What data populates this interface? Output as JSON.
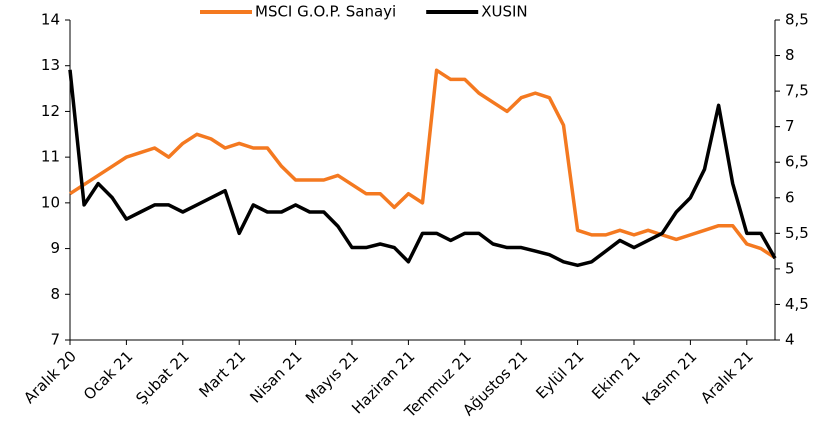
{
  "chart_data": {
    "type": "line",
    "categories": [
      "Aralık 20",
      null,
      null,
      null,
      "Ocak 21",
      null,
      null,
      null,
      "Şubat 21",
      null,
      null,
      null,
      "Mart 21",
      null,
      null,
      null,
      "Nisan 21",
      null,
      null,
      null,
      "Mayıs 21",
      null,
      null,
      null,
      "Haziran 21",
      null,
      null,
      null,
      "Temmuz 21",
      null,
      null,
      null,
      "Ağustos 21",
      null,
      null,
      null,
      "Eylül 21",
      null,
      null,
      null,
      "Ekim 21",
      null,
      null,
      null,
      "Kasım 21",
      null,
      null,
      null,
      "Aralık 21",
      null,
      null
    ],
    "series": [
      {
        "name": "MSCI G.O.P. Sanayi",
        "color": "#f47920",
        "values": [
          10.2,
          10.4,
          10.6,
          10.8,
          11.0,
          11.1,
          11.2,
          11.0,
          11.3,
          11.5,
          11.4,
          11.2,
          11.3,
          11.2,
          11.2,
          10.8,
          10.5,
          10.5,
          10.5,
          10.6,
          10.4,
          10.2,
          10.2,
          9.9,
          10.2,
          10.0,
          12.9,
          12.7,
          12.7,
          12.4,
          12.2,
          12.0,
          12.3,
          12.4,
          12.3,
          11.7,
          9.4,
          9.3,
          9.3,
          9.4,
          9.3,
          9.4,
          9.3,
          9.2,
          9.3,
          9.4,
          9.5,
          9.5,
          9.1,
          9.0,
          8.8
        ]
      },
      {
        "name": "XUSIN",
        "color": "#000000",
        "axis": "y2",
        "values": [
          7.8,
          5.9,
          6.2,
          6.0,
          5.7,
          5.8,
          5.9,
          5.9,
          5.8,
          5.9,
          6.0,
          6.1,
          5.5,
          5.9,
          5.8,
          5.8,
          5.9,
          5.8,
          5.8,
          5.6,
          5.3,
          5.3,
          5.35,
          5.3,
          5.1,
          5.5,
          5.5,
          5.4,
          5.5,
          5.5,
          5.35,
          5.3,
          5.3,
          5.25,
          5.2,
          5.1,
          5.05,
          5.1,
          5.25,
          5.4,
          5.3,
          5.4,
          5.5,
          5.8,
          6.0,
          6.4,
          7.3,
          6.2,
          5.5,
          5.5,
          5.15
        ]
      }
    ],
    "ylim": [
      7,
      14
    ],
    "yticks": [
      7,
      8,
      9,
      10,
      11,
      12,
      13,
      14
    ],
    "y2lim": [
      4,
      8.5
    ],
    "y2ticks": [
      4,
      {
        "value": 4.5,
        "label": "4,5"
      },
      5,
      {
        "value": 5.5,
        "label": "5,5"
      },
      6,
      {
        "value": 6.5,
        "label": "6,5"
      },
      7,
      {
        "value": 7.5,
        "label": "7,5"
      },
      8,
      {
        "value": 8.5,
        "label": "8,5"
      }
    ],
    "legend": "top"
  }
}
